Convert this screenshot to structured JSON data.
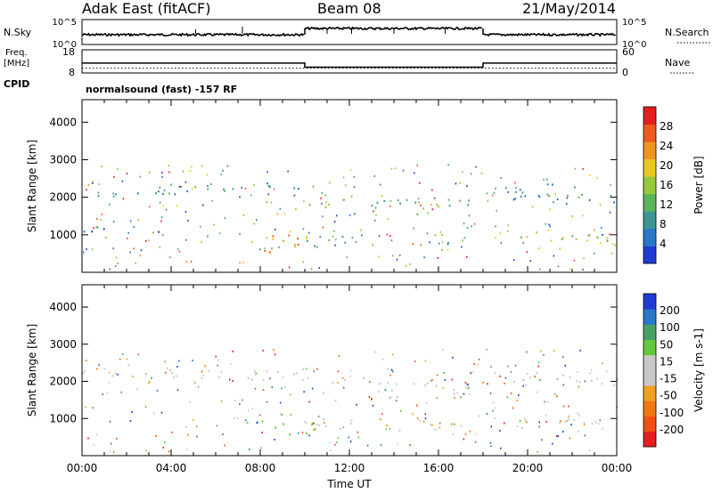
{
  "header": {
    "station": "Adak East (fitACF)",
    "beam": "Beam 08",
    "date": "21/May/2014"
  },
  "left_labels": {
    "nsky": "N.Sky",
    "freq_top": "Freq.",
    "freq_unit": "[MHz]",
    "cpid": "CPID"
  },
  "right_labels": {
    "nsearch": "N.Search",
    "nave": "Nave"
  },
  "cpid_text": "normalsound (fast) -157 RF",
  "colors": {
    "power": [
      "#1e3cd2",
      "#2878c8",
      "#3c9696",
      "#5ab45a",
      "#96c83c",
      "#e6c81e",
      "#f0961e",
      "#f05a1e",
      "#e61e1e"
    ],
    "velocity": [
      "#1e3cd2",
      "#2878c8",
      "#4aa064",
      "#64c83c",
      "#c8c8c8",
      "#c8c8c8",
      "#f0a01e",
      "#f07814",
      "#f05014",
      "#e61e1e"
    ]
  },
  "chart_data": [
    {
      "type": "line",
      "name": "noise-panel",
      "left_axis_ticks": [
        "10^5",
        "10^0"
      ],
      "right_axis_ticks": [
        "10^5",
        "10^0"
      ],
      "series": [
        {
          "segments": [
            {
              "x": [
                0,
                10
              ],
              "level": "low"
            },
            {
              "x": [
                10,
                18
              ],
              "level": "high"
            },
            {
              "x": [
                18,
                24
              ],
              "level": "low"
            }
          ]
        }
      ]
    },
    {
      "type": "line",
      "name": "freq-nave-panel",
      "left_axis_ticks": [
        18,
        8
      ],
      "right_axis_ticks": [
        60,
        0
      ],
      "freq_MHz": [
        {
          "x": [
            0,
            10
          ],
          "y": 12.3
        },
        {
          "x": [
            10,
            18
          ],
          "y": 10.5
        },
        {
          "x": [
            18,
            24
          ],
          "y": 12.3
        }
      ],
      "nave_dotted": 10
    },
    {
      "type": "heatmap",
      "name": "power",
      "ylabel": "Slant Range [km]",
      "ylim": [
        0,
        4600
      ],
      "y_ticks": [
        1000,
        2000,
        3000,
        4000
      ],
      "xlim": [
        0,
        24
      ],
      "colorbar_label": "Power [dB]",
      "colorbar_ticks": [
        4,
        8,
        12,
        16,
        20,
        24,
        28
      ],
      "scatter_regions": [
        {
          "x": [
            0,
            10
          ],
          "range": [
            2000,
            2450
          ],
          "level": 2
        },
        {
          "x": [
            10,
            17.5
          ],
          "range": [
            1500,
            2200
          ],
          "level": 3
        },
        {
          "x": [
            18,
            24
          ],
          "range": [
            1800,
            2400
          ],
          "level": 2
        },
        {
          "x": [
            7.2,
            10
          ],
          "range": [
            500,
            1200
          ],
          "level": 6
        },
        {
          "x": [
            10,
            17.2
          ],
          "range": [
            600,
            1100
          ],
          "level": 3
        },
        {
          "x": [
            19,
            24
          ],
          "range": [
            600,
            1200
          ],
          "level": 4
        },
        {
          "x": [
            0,
            3.5
          ],
          "range": [
            1050,
            1300
          ],
          "level": 1
        }
      ]
    },
    {
      "type": "heatmap",
      "name": "velocity",
      "ylabel": "Slant Range [km]",
      "ylim": [
        0,
        4600
      ],
      "y_ticks": [
        1000,
        2000,
        3000,
        4000
      ],
      "xlim": [
        0,
        24
      ],
      "xlabel": "Time UT",
      "x_ticks": [
        "00:00",
        "04:00",
        "08:00",
        "12:00",
        "16:00",
        "20:00",
        "00:00"
      ],
      "colorbar_label": "Velocity [m s-1]",
      "colorbar_ticks": [
        200,
        100,
        50,
        15,
        -15,
        -50,
        -100,
        -200
      ],
      "scatter_regions": [
        {
          "x": [
            0,
            10
          ],
          "range": [
            2000,
            2500
          ],
          "level": "grey"
        },
        {
          "x": [
            10,
            17.5
          ],
          "range": [
            1500,
            2200
          ],
          "level": "grey"
        },
        {
          "x": [
            18,
            24
          ],
          "range": [
            1800,
            2400
          ],
          "level": "grey"
        },
        {
          "x": [
            7.2,
            10.5
          ],
          "range": [
            550,
            1150
          ],
          "level": "green"
        },
        {
          "x": [
            10,
            17.2
          ],
          "range": [
            600,
            1100
          ],
          "level": "grey-mixed"
        },
        {
          "x": [
            19,
            24
          ],
          "range": [
            650,
            1200
          ],
          "level": "grey"
        }
      ]
    }
  ]
}
